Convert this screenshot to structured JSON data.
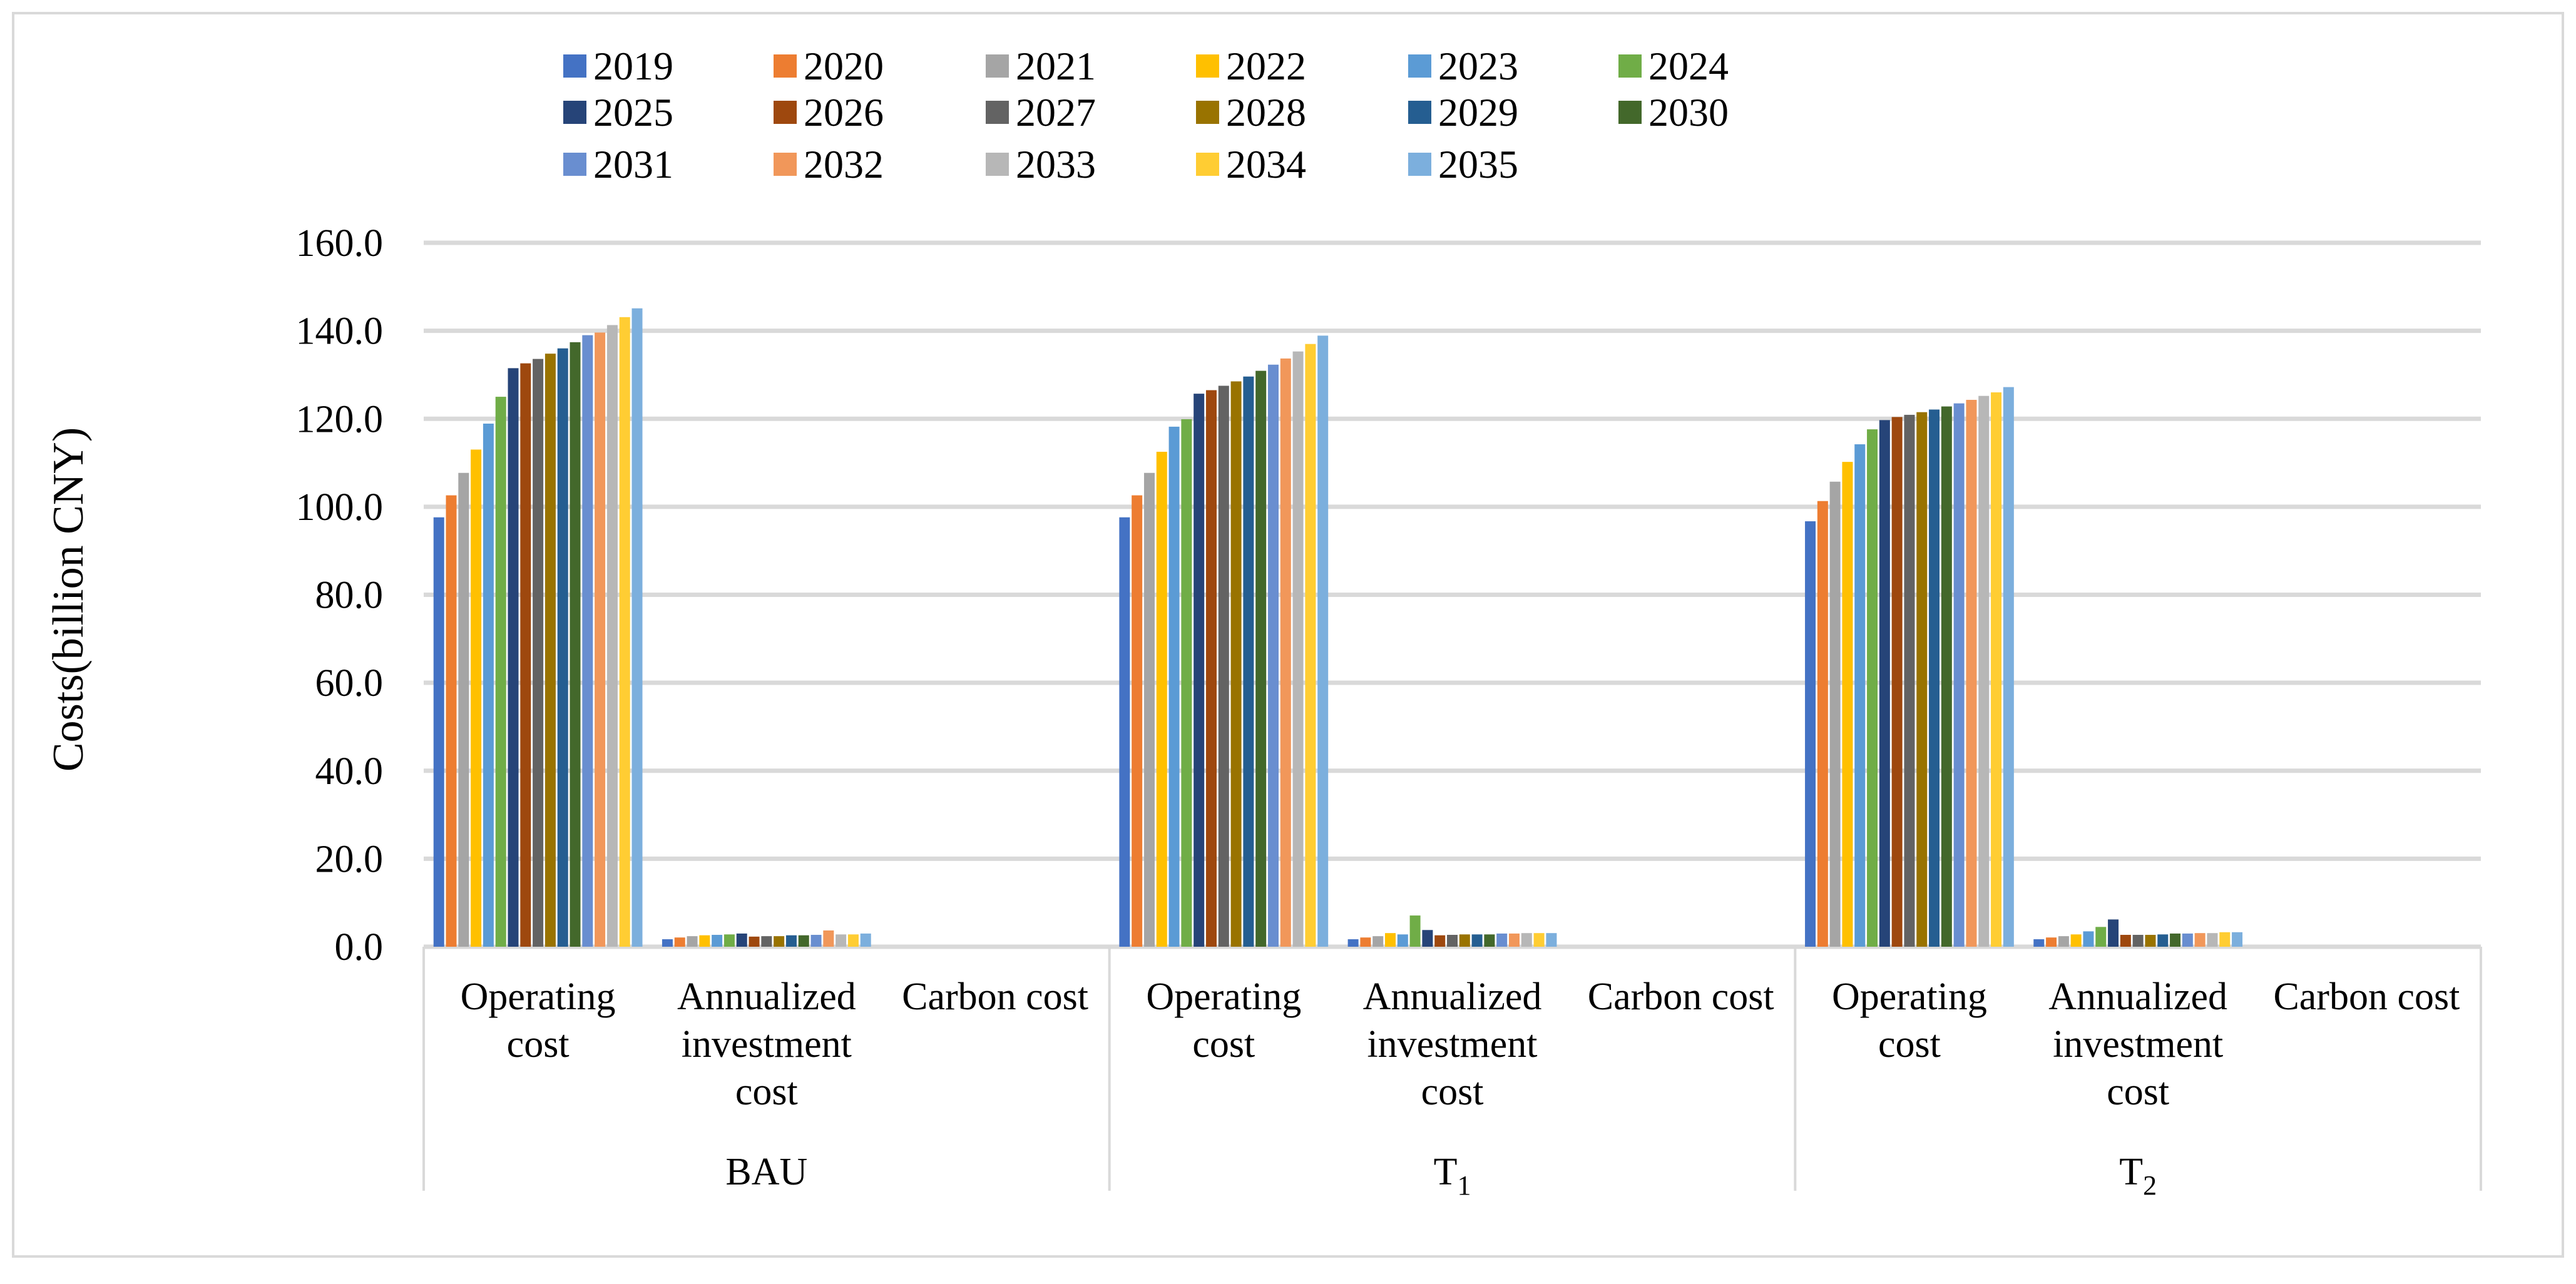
{
  "chart_data": {
    "type": "bar",
    "title": "",
    "ylabel": "Costs(billion CNY)",
    "xlabel": "",
    "ylim": [
      0,
      160
    ],
    "yticks": [
      "0.0",
      "20.0",
      "40.0",
      "60.0",
      "80.0",
      "100.0",
      "120.0",
      "140.0",
      "160.0"
    ],
    "grid": true,
    "legend_position": "top",
    "groups": [
      {
        "label": "BAU",
        "sub": ""
      },
      {
        "label": "T",
        "sub": "1"
      },
      {
        "label": "T",
        "sub": "2"
      }
    ],
    "categories": [
      [
        "Operating",
        "cost"
      ],
      [
        "Annualized",
        "investment",
        "cost"
      ],
      [
        "Carbon cost"
      ]
    ],
    "series": [
      {
        "name": "2019",
        "color": "#4472C4",
        "values": [
          [
            97.6,
            1.7,
            0
          ],
          [
            97.6,
            1.7,
            0
          ],
          [
            96.7,
            1.7,
            0
          ]
        ]
      },
      {
        "name": "2020",
        "color": "#ED7D31",
        "values": [
          [
            102.6,
            2.1,
            0
          ],
          [
            102.6,
            2.1,
            0
          ],
          [
            101.3,
            2.1,
            0
          ]
        ]
      },
      {
        "name": "2021",
        "color": "#A5A5A5",
        "values": [
          [
            107.7,
            2.4,
            0
          ],
          [
            107.7,
            2.4,
            0
          ],
          [
            105.7,
            2.4,
            0
          ]
        ]
      },
      {
        "name": "2022",
        "color": "#FFC000",
        "values": [
          [
            113.0,
            2.6,
            0
          ],
          [
            112.5,
            3.1,
            0
          ],
          [
            110.2,
            2.8,
            0
          ]
        ]
      },
      {
        "name": "2023",
        "color": "#5B9BD5",
        "values": [
          [
            118.9,
            2.7,
            0
          ],
          [
            118.2,
            2.8,
            0
          ],
          [
            114.2,
            3.5,
            0
          ]
        ]
      },
      {
        "name": "2024",
        "color": "#70AD47",
        "values": [
          [
            125.0,
            2.8,
            0
          ],
          [
            119.9,
            7.1,
            0
          ],
          [
            117.6,
            4.5,
            0
          ]
        ]
      },
      {
        "name": "2025",
        "color": "#264478",
        "values": [
          [
            131.5,
            3.0,
            0
          ],
          [
            125.7,
            3.8,
            0
          ],
          [
            119.7,
            6.2,
            0
          ]
        ]
      },
      {
        "name": "2026",
        "color": "#9E480E",
        "values": [
          [
            132.6,
            2.3,
            0
          ],
          [
            126.5,
            2.6,
            0
          ],
          [
            120.4,
            2.7,
            0
          ]
        ]
      },
      {
        "name": "2027",
        "color": "#636363",
        "values": [
          [
            133.6,
            2.4,
            0
          ],
          [
            127.5,
            2.7,
            0
          ],
          [
            120.9,
            2.7,
            0
          ]
        ]
      },
      {
        "name": "2028",
        "color": "#997300",
        "values": [
          [
            134.8,
            2.4,
            0
          ],
          [
            128.5,
            2.8,
            0
          ],
          [
            121.5,
            2.7,
            0
          ]
        ]
      },
      {
        "name": "2029",
        "color": "#255E91",
        "values": [
          [
            136.0,
            2.6,
            0
          ],
          [
            129.6,
            2.8,
            0
          ],
          [
            122.1,
            2.8,
            0
          ]
        ]
      },
      {
        "name": "2030",
        "color": "#43682B",
        "values": [
          [
            137.4,
            2.6,
            0
          ],
          [
            130.9,
            2.8,
            0
          ],
          [
            122.8,
            3.0,
            0
          ]
        ]
      },
      {
        "name": "2031",
        "color": "#698ED0",
        "values": [
          [
            139.0,
            2.7,
            0
          ],
          [
            132.3,
            3.0,
            0
          ],
          [
            123.5,
            3.0,
            0
          ]
        ]
      },
      {
        "name": "2032",
        "color": "#F1975A",
        "values": [
          [
            139.6,
            3.7,
            0
          ],
          [
            133.7,
            3.0,
            0
          ],
          [
            124.3,
            3.1,
            0
          ]
        ]
      },
      {
        "name": "2033",
        "color": "#B7B7B7",
        "values": [
          [
            141.3,
            2.8,
            0
          ],
          [
            135.3,
            3.1,
            0
          ],
          [
            125.2,
            3.1,
            0
          ]
        ]
      },
      {
        "name": "2034",
        "color": "#FFCD33",
        "values": [
          [
            143.1,
            2.8,
            0
          ],
          [
            137.0,
            3.1,
            0
          ],
          [
            126.0,
            3.3,
            0
          ]
        ]
      },
      {
        "name": "2035",
        "color": "#7CAFDD",
        "values": [
          [
            145.1,
            3.0,
            0
          ],
          [
            138.9,
            3.1,
            0
          ],
          [
            127.2,
            3.3,
            0
          ]
        ]
      }
    ]
  }
}
